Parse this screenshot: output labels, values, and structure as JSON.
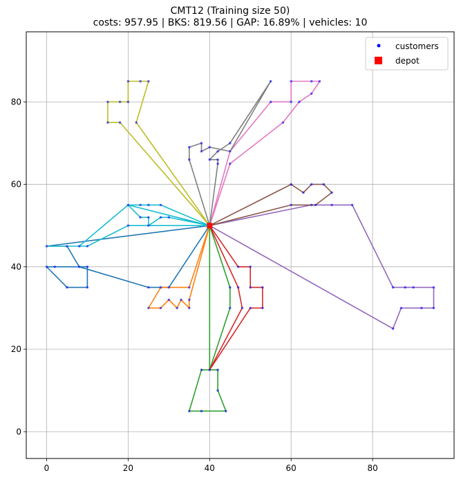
{
  "chart_data": {
    "type": "scatter",
    "title": "CMT12 (Training size 50)",
    "subtitle": "costs: 957.95 | BKS: 819.56 | GAP: 16.89% | vehicles: 10",
    "xlabel": "",
    "ylabel": "",
    "xlim": [
      -5,
      100
    ],
    "ylim": [
      -6.5,
      97
    ],
    "xticks": [
      0,
      20,
      40,
      60,
      80
    ],
    "yticks": [
      0,
      20,
      40,
      60,
      80
    ],
    "grid": true,
    "legend": {
      "placement": "top-right",
      "entries": [
        {
          "label": "customers",
          "marker": "dot",
          "color": "#0000ff"
        },
        {
          "label": "depot",
          "marker": "square",
          "color": "#ff0000"
        }
      ]
    },
    "depot": [
      40,
      50
    ],
    "routes": [
      {
        "color": "#1f77b4",
        "points": [
          [
            40,
            50
          ],
          [
            0,
            45
          ],
          [
            5,
            45
          ],
          [
            8,
            40
          ],
          [
            2,
            40
          ],
          [
            0,
            40
          ],
          [
            5,
            35
          ],
          [
            10,
            35
          ],
          [
            10,
            40
          ],
          [
            8,
            40
          ],
          [
            25,
            35
          ],
          [
            30,
            35
          ],
          [
            40,
            50
          ]
        ]
      },
      {
        "color": "#ff7f0e",
        "points": [
          [
            40,
            50
          ],
          [
            35,
            35
          ],
          [
            28,
            35
          ],
          [
            25,
            30
          ],
          [
            28,
            30
          ],
          [
            30,
            32
          ],
          [
            32,
            30
          ],
          [
            33,
            32
          ],
          [
            35,
            30
          ],
          [
            35,
            32
          ],
          [
            40,
            50
          ]
        ]
      },
      {
        "color": "#2ca02c",
        "points": [
          [
            40,
            50
          ],
          [
            40,
            15
          ],
          [
            38,
            15
          ],
          [
            35,
            5
          ],
          [
            38,
            5
          ],
          [
            44,
            5
          ],
          [
            42,
            10
          ],
          [
            42,
            15
          ],
          [
            40,
            15
          ],
          [
            45,
            30
          ],
          [
            45,
            35
          ],
          [
            40,
            50
          ]
        ]
      },
      {
        "color": "#d62728",
        "points": [
          [
            40,
            50
          ],
          [
            47,
            40
          ],
          [
            50,
            40
          ],
          [
            50,
            35
          ],
          [
            53,
            35
          ],
          [
            53,
            30
          ],
          [
            50,
            30
          ],
          [
            40,
            15
          ],
          [
            48,
            30
          ],
          [
            47,
            35
          ],
          [
            40,
            50
          ]
        ]
      },
      {
        "color": "#9467bd",
        "points": [
          [
            40,
            50
          ],
          [
            85,
            25
          ],
          [
            87,
            30
          ],
          [
            92,
            30
          ],
          [
            95,
            30
          ],
          [
            95,
            35
          ],
          [
            90,
            35
          ],
          [
            88,
            35
          ],
          [
            85,
            35
          ],
          [
            75,
            55
          ],
          [
            70,
            55
          ],
          [
            65,
            55
          ],
          [
            40,
            50
          ]
        ]
      },
      {
        "color": "#8c564b",
        "points": [
          [
            40,
            50
          ],
          [
            60,
            55
          ],
          [
            66,
            55
          ],
          [
            70,
            58
          ],
          [
            68,
            60
          ],
          [
            65,
            60
          ],
          [
            63,
            58
          ],
          [
            60,
            60
          ],
          [
            40,
            50
          ]
        ]
      },
      {
        "color": "#e377c2",
        "points": [
          [
            40,
            50
          ],
          [
            45,
            65
          ],
          [
            58,
            75
          ],
          [
            62,
            80
          ],
          [
            65,
            82
          ],
          [
            67,
            85
          ],
          [
            65,
            85
          ],
          [
            60,
            85
          ],
          [
            60,
            80
          ],
          [
            55,
            80
          ],
          [
            45,
            68
          ],
          [
            40,
            50
          ]
        ]
      },
      {
        "color": "#7f7f7f",
        "points": [
          [
            40,
            50
          ],
          [
            42,
            65
          ],
          [
            42,
            66
          ],
          [
            40,
            66
          ],
          [
            42,
            68
          ],
          [
            45,
            70
          ],
          [
            55,
            85
          ],
          [
            45,
            68
          ],
          [
            40,
            69
          ],
          [
            38,
            68
          ],
          [
            38,
            70
          ],
          [
            35,
            69
          ],
          [
            35,
            66
          ],
          [
            40,
            50
          ]
        ]
      },
      {
        "color": "#bcbd22",
        "points": [
          [
            40,
            50
          ],
          [
            22,
            75
          ],
          [
            25,
            85
          ],
          [
            23,
            85
          ],
          [
            20,
            85
          ],
          [
            20,
            80
          ],
          [
            18,
            80
          ],
          [
            15,
            80
          ],
          [
            15,
            75
          ],
          [
            18,
            75
          ],
          [
            40,
            50
          ]
        ]
      },
      {
        "color": "#17becf",
        "points": [
          [
            40,
            50
          ],
          [
            20,
            50
          ],
          [
            10,
            45
          ],
          [
            0,
            45
          ],
          [
            8,
            45
          ],
          [
            20,
            55
          ],
          [
            23,
            55
          ],
          [
            25,
            55
          ],
          [
            28,
            55
          ],
          [
            40,
            50
          ],
          [
            30,
            52
          ],
          [
            28,
            52
          ],
          [
            25,
            50
          ],
          [
            25,
            52
          ],
          [
            23,
            52
          ],
          [
            20,
            55
          ],
          [
            40,
            50
          ]
        ]
      }
    ]
  }
}
